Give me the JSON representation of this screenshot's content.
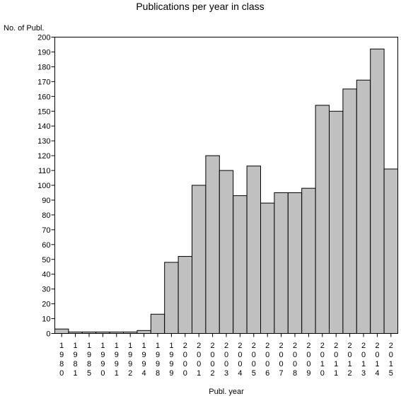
{
  "chart_data": {
    "type": "bar",
    "title": "Publications per year in class",
    "ylabel": "No. of Publ.",
    "xlabel": "Publ. year",
    "categories": [
      "1980",
      "1981",
      "1985",
      "1990",
      "1991",
      "1992",
      "1994",
      "1998",
      "1999",
      "2000",
      "2001",
      "2002",
      "2003",
      "2004",
      "2005",
      "2006",
      "2007",
      "2008",
      "2009",
      "2010",
      "2011",
      "2012",
      "2013",
      "2014",
      "2015"
    ],
    "values": [
      3,
      1,
      1,
      1,
      1,
      1,
      2,
      13,
      48,
      52,
      100,
      120,
      110,
      93,
      113,
      88,
      95,
      95,
      98,
      154,
      150,
      165,
      171,
      192,
      111
    ],
    "ylim": [
      0,
      200
    ],
    "yticks": [
      0,
      10,
      20,
      30,
      40,
      50,
      60,
      70,
      80,
      90,
      100,
      110,
      120,
      130,
      140,
      150,
      160,
      170,
      180,
      190,
      200
    ],
    "grid": false,
    "legend": "none",
    "colors": {
      "bar_fill": "#c0c0c0",
      "bar_stroke": "#000000",
      "axis": "#000000",
      "background": "#ffffff"
    }
  }
}
